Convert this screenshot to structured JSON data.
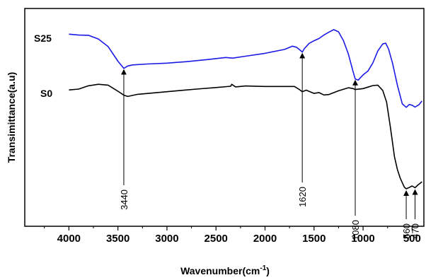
{
  "chart_data": {
    "type": "line",
    "xlabel": "Wavenumber(cm",
    "xlabel_sup": "-1",
    "xlabel_end": ")",
    "ylabel": "Transimittance(a.u)",
    "xlim": [
      4450,
      380
    ],
    "x_reversed": true,
    "y_ticks_shown": false,
    "grid": false,
    "x_ticks": [
      "4000",
      "3500",
      "3000",
      "2500",
      "2000",
      "1500",
      "1000",
      "500"
    ],
    "ylim": [
      0,
      100
    ],
    "series": [
      {
        "name": "S25",
        "color": "#1a1ae6",
        "points": [
          [
            4000,
            88.2
          ],
          [
            3900,
            87.8
          ],
          [
            3800,
            87.7
          ],
          [
            3700,
            86.0
          ],
          [
            3600,
            82.5
          ],
          [
            3500,
            75.8
          ],
          [
            3440,
            72.5
          ],
          [
            3400,
            73.6
          ],
          [
            3350,
            74.1
          ],
          [
            3200,
            74.5
          ],
          [
            3000,
            74.9
          ],
          [
            2800,
            75.6
          ],
          [
            2600,
            76.5
          ],
          [
            2400,
            77.5
          ],
          [
            2330,
            77.2
          ],
          [
            2200,
            78.1
          ],
          [
            2000,
            79.4
          ],
          [
            1800,
            81.2
          ],
          [
            1720,
            82.7
          ],
          [
            1680,
            82.2
          ],
          [
            1640,
            80.8
          ],
          [
            1620,
            80.0
          ],
          [
            1600,
            81.5
          ],
          [
            1550,
            84.0
          ],
          [
            1500,
            85.2
          ],
          [
            1450,
            86.2
          ],
          [
            1400,
            87.8
          ],
          [
            1350,
            89.1
          ],
          [
            1300,
            90.3
          ],
          [
            1250,
            89.3
          ],
          [
            1200,
            85.2
          ],
          [
            1150,
            79.1
          ],
          [
            1100,
            70.7
          ],
          [
            1080,
            67.6
          ],
          [
            1050,
            67.1
          ],
          [
            1000,
            69.5
          ],
          [
            950,
            71.3
          ],
          [
            900,
            75.0
          ],
          [
            850,
            80.5
          ],
          [
            800,
            83.7
          ],
          [
            770,
            84.1
          ],
          [
            740,
            81.4
          ],
          [
            700,
            74.9
          ],
          [
            650,
            64.7
          ],
          [
            600,
            56.2
          ],
          [
            560,
            54.6
          ],
          [
            530,
            55.9
          ],
          [
            500,
            55.6
          ],
          [
            470,
            54.7
          ],
          [
            430,
            55.8
          ],
          [
            400,
            57.5
          ]
        ]
      },
      {
        "name": "S0",
        "color": "#000000",
        "points": [
          [
            4000,
            62.6
          ],
          [
            3900,
            63.0
          ],
          [
            3800,
            64.5
          ],
          [
            3700,
            65.2
          ],
          [
            3600,
            64.8
          ],
          [
            3500,
            62.0
          ],
          [
            3440,
            60.2
          ],
          [
            3400,
            59.6
          ],
          [
            3300,
            60.6
          ],
          [
            3100,
            61.4
          ],
          [
            2900,
            62.2
          ],
          [
            2700,
            63.0
          ],
          [
            2500,
            63.7
          ],
          [
            2350,
            64.3
          ],
          [
            2340,
            65.2
          ],
          [
            2300,
            64.0
          ],
          [
            2200,
            64.4
          ],
          [
            2000,
            64.2
          ],
          [
            1800,
            64.2
          ],
          [
            1700,
            64.2
          ],
          [
            1650,
            62.8
          ],
          [
            1620,
            61.8
          ],
          [
            1580,
            62.5
          ],
          [
            1500,
            61.0
          ],
          [
            1450,
            61.4
          ],
          [
            1400,
            60.3
          ],
          [
            1350,
            60.5
          ],
          [
            1250,
            62.2
          ],
          [
            1150,
            63.6
          ],
          [
            1100,
            63.2
          ],
          [
            1080,
            62.8
          ],
          [
            1000,
            63.2
          ],
          [
            950,
            63.9
          ],
          [
            900,
            64.6
          ],
          [
            850,
            64.8
          ],
          [
            800,
            62.4
          ],
          [
            760,
            57.0
          ],
          [
            720,
            45.0
          ],
          [
            680,
            32.0
          ],
          [
            650,
            26.0
          ],
          [
            620,
            22.0
          ],
          [
            580,
            18.0
          ],
          [
            560,
            17.2
          ],
          [
            530,
            17.8
          ],
          [
            500,
            18.5
          ],
          [
            470,
            17.7
          ],
          [
            440,
            19.0
          ],
          [
            410,
            20.0
          ],
          [
            400,
            20.5
          ]
        ]
      }
    ],
    "annotations": [
      {
        "label": "3440",
        "x": 3440
      },
      {
        "label": "1620",
        "x": 1620
      },
      {
        "label": "1080",
        "x": 1080
      },
      {
        "label": "560",
        "x": 560
      },
      {
        "label": "470",
        "x": 470
      }
    ]
  }
}
